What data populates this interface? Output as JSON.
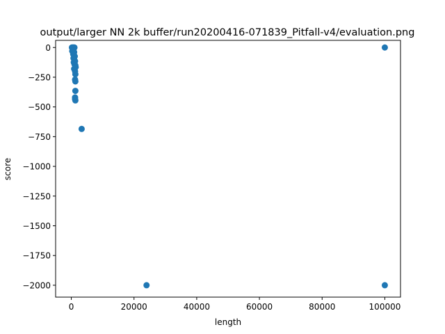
{
  "chart_data": {
    "type": "scatter",
    "title": "output/larger NN 2k buffer/run20200416-071839_Pitfall-v4/evaluation.png",
    "xlabel": "length",
    "ylabel": "score",
    "xlim": [
      -5000,
      105000
    ],
    "ylim": [
      -2100,
      60
    ],
    "xticks": [
      0,
      20000,
      40000,
      60000,
      80000,
      100000
    ],
    "yticks": [
      0,
      -250,
      -500,
      -750,
      -1000,
      -1250,
      -1500,
      -1750,
      -2000
    ],
    "xtick_labels": [
      "0",
      "20000",
      "40000",
      "60000",
      "80000",
      "100000"
    ],
    "ytick_labels": [
      "0",
      "−250",
      "−500",
      "−750",
      "−1000",
      "−1250",
      "−1500",
      "−1750",
      "−2000"
    ],
    "grid": false,
    "marker_color": "#1f77b4",
    "points": [
      {
        "x": 200,
        "y": 0
      },
      {
        "x": 400,
        "y": 0
      },
      {
        "x": 600,
        "y": 0
      },
      {
        "x": 800,
        "y": 0
      },
      {
        "x": 1000,
        "y": 0
      },
      {
        "x": 500,
        "y": -10
      },
      {
        "x": 700,
        "y": -20
      },
      {
        "x": 300,
        "y": -30
      },
      {
        "x": 900,
        "y": -40
      },
      {
        "x": 600,
        "y": -55
      },
      {
        "x": 800,
        "y": -65
      },
      {
        "x": 1100,
        "y": -75
      },
      {
        "x": 700,
        "y": -90
      },
      {
        "x": 900,
        "y": -100
      },
      {
        "x": 1200,
        "y": -115
      },
      {
        "x": 800,
        "y": -125
      },
      {
        "x": 1000,
        "y": -140
      },
      {
        "x": 1300,
        "y": -150
      },
      {
        "x": 1400,
        "y": -165
      },
      {
        "x": 900,
        "y": -180
      },
      {
        "x": 1200,
        "y": -200
      },
      {
        "x": 1300,
        "y": -225
      },
      {
        "x": 1200,
        "y": -270
      },
      {
        "x": 1300,
        "y": -285
      },
      {
        "x": 1300,
        "y": -365
      },
      {
        "x": 1200,
        "y": -420
      },
      {
        "x": 1200,
        "y": -435
      },
      {
        "x": 1300,
        "y": -445
      },
      {
        "x": 3300,
        "y": -685
      },
      {
        "x": 24000,
        "y": -2000
      },
      {
        "x": 100000,
        "y": 0
      },
      {
        "x": 100000,
        "y": -2000
      }
    ]
  }
}
